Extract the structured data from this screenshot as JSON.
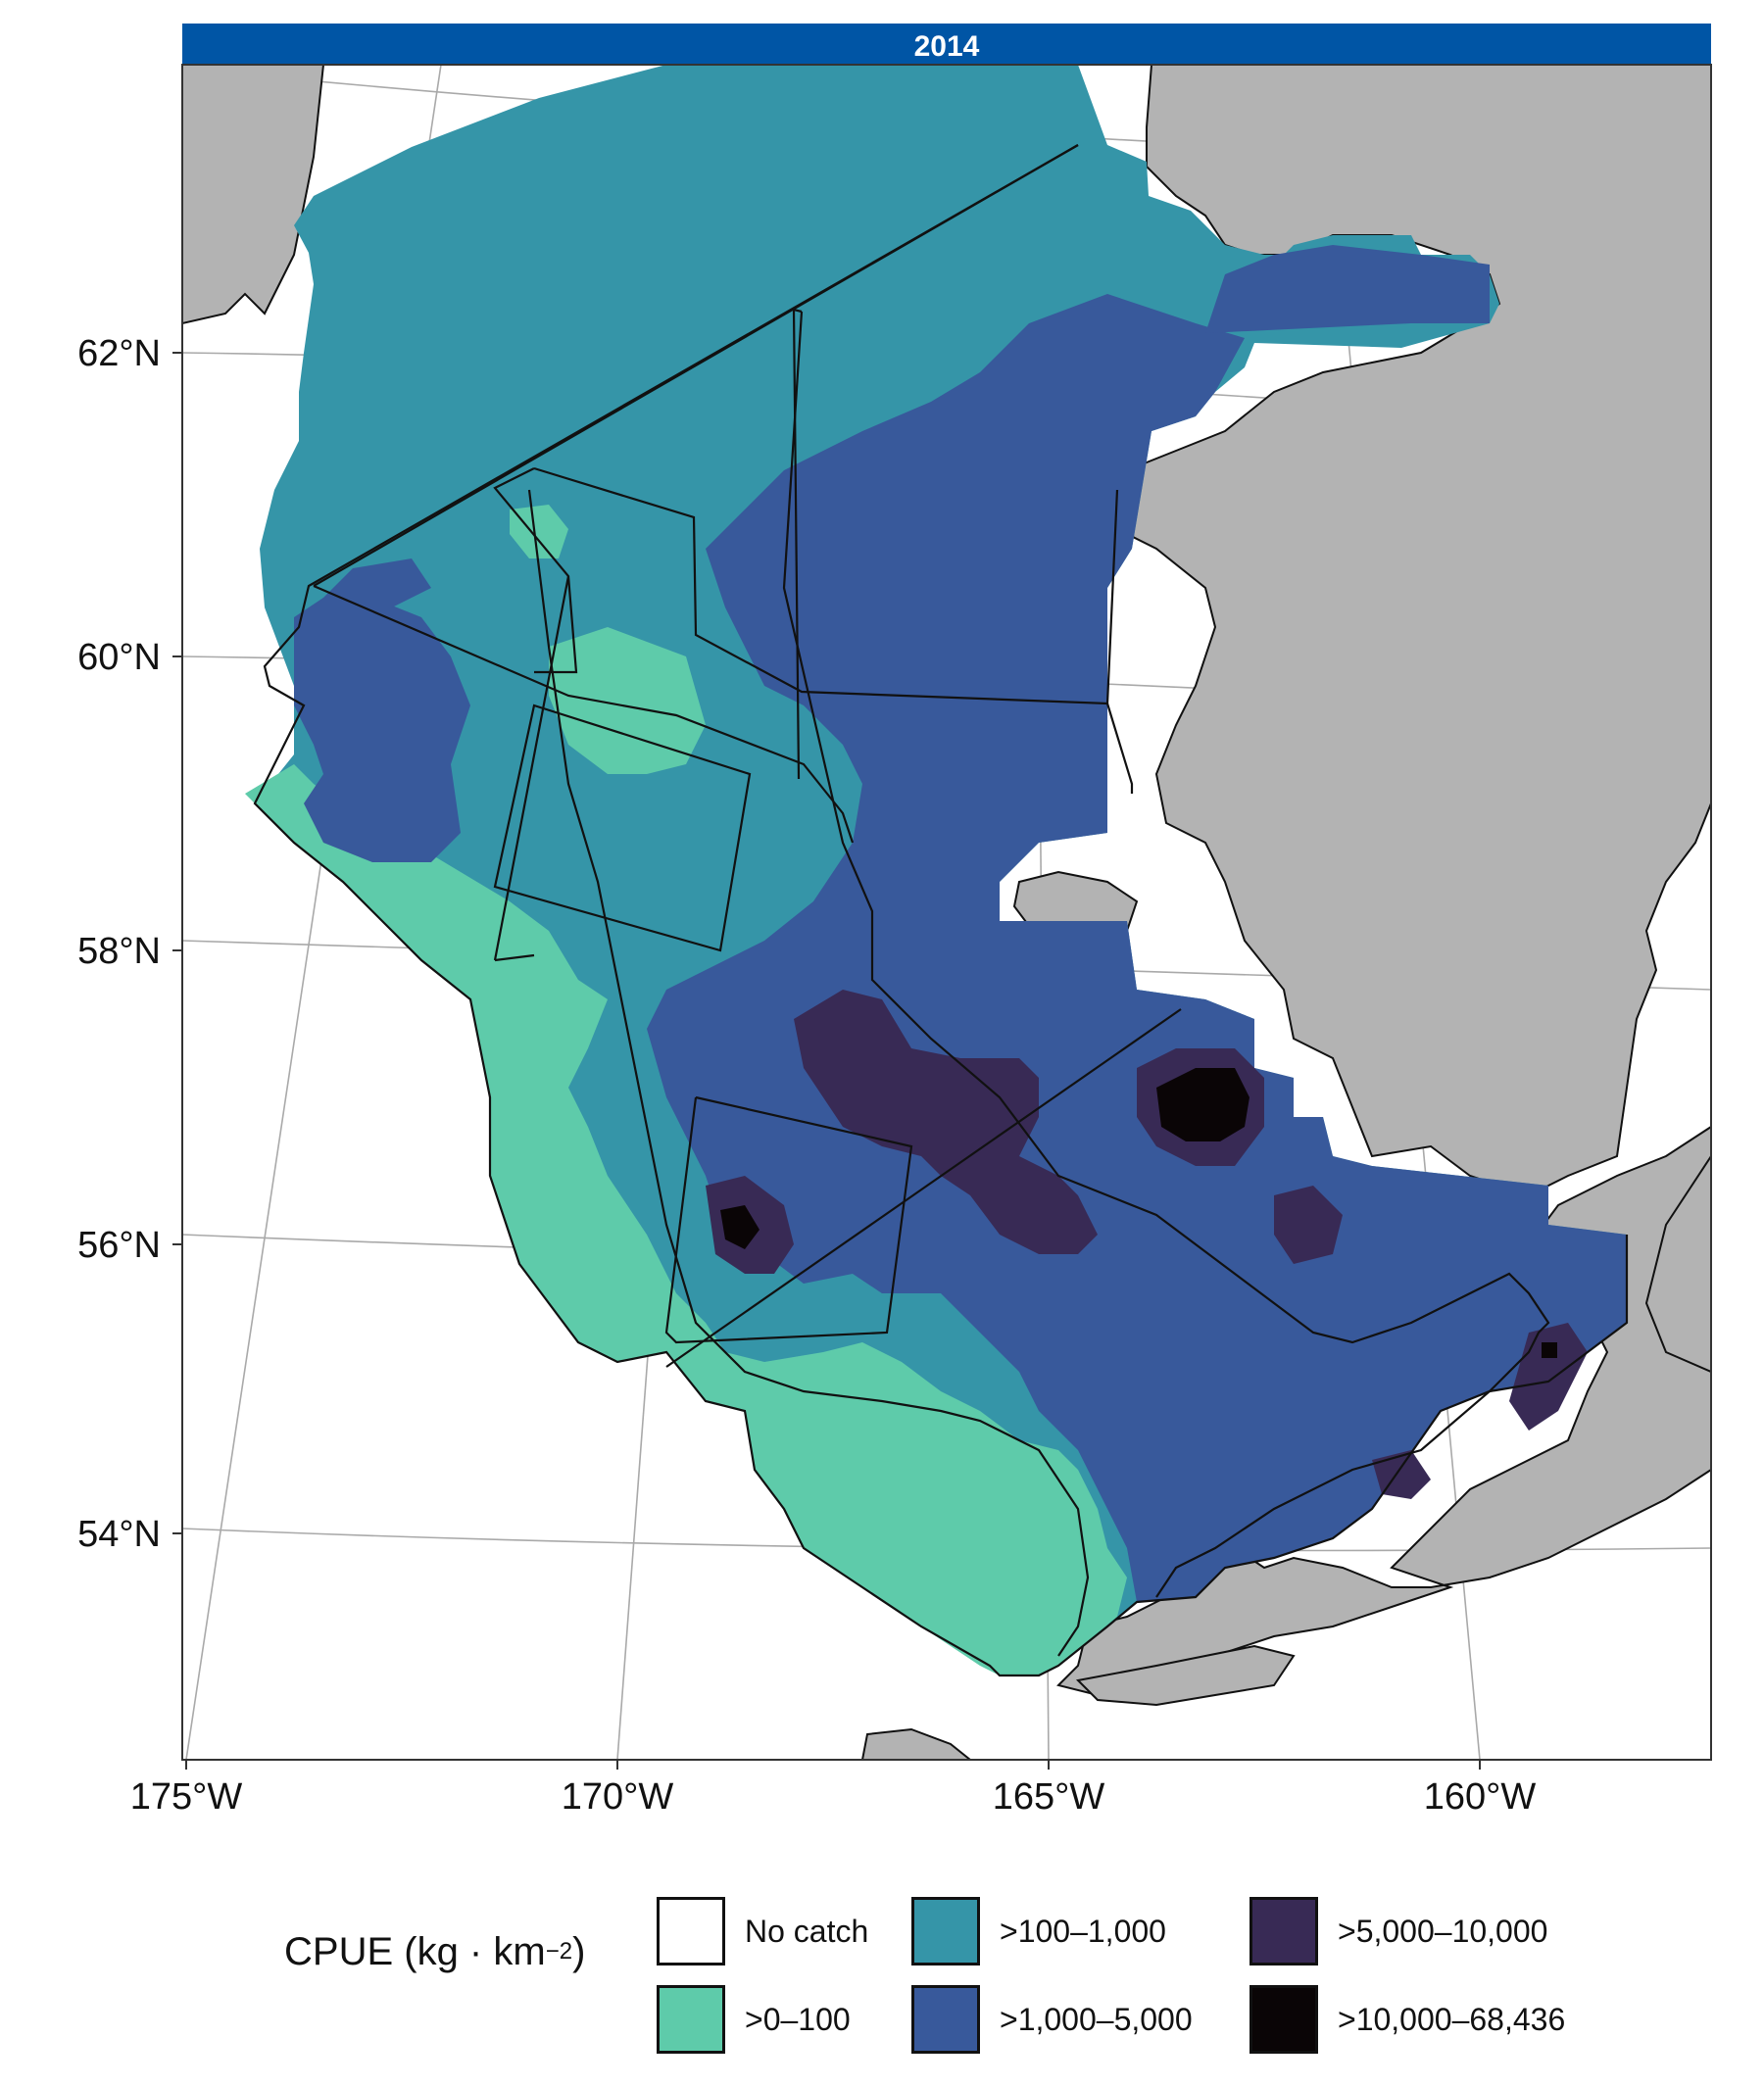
{
  "panel": {
    "title": "2014"
  },
  "axes": {
    "lat_labels": [
      "62°N",
      "60°N",
      "58°N",
      "56°N",
      "54°N"
    ],
    "lon_labels": [
      "175°W",
      "170°W",
      "165°W",
      "160°W"
    ]
  },
  "legend": {
    "title": "CPUE (kg · km",
    "title_exp": "−2",
    "title_end": ")",
    "items": [
      {
        "label": "No catch",
        "color": "#ffffff"
      },
      {
        "label": ">0–100",
        "color": "#5ecbaa"
      },
      {
        "label": ">100–1,000",
        "color": "#3595a8"
      },
      {
        "label": ">1,000–5,000",
        "color": "#38599b"
      },
      {
        "label": ">5,000–10,000",
        "color": "#382a55"
      },
      {
        "label": ">10,000–68,436",
        "color": "#0a0506"
      }
    ]
  },
  "colors": {
    "land": "#b3b3b3",
    "title_bar": "#0055a5",
    "grid": "#a9a9a9"
  }
}
